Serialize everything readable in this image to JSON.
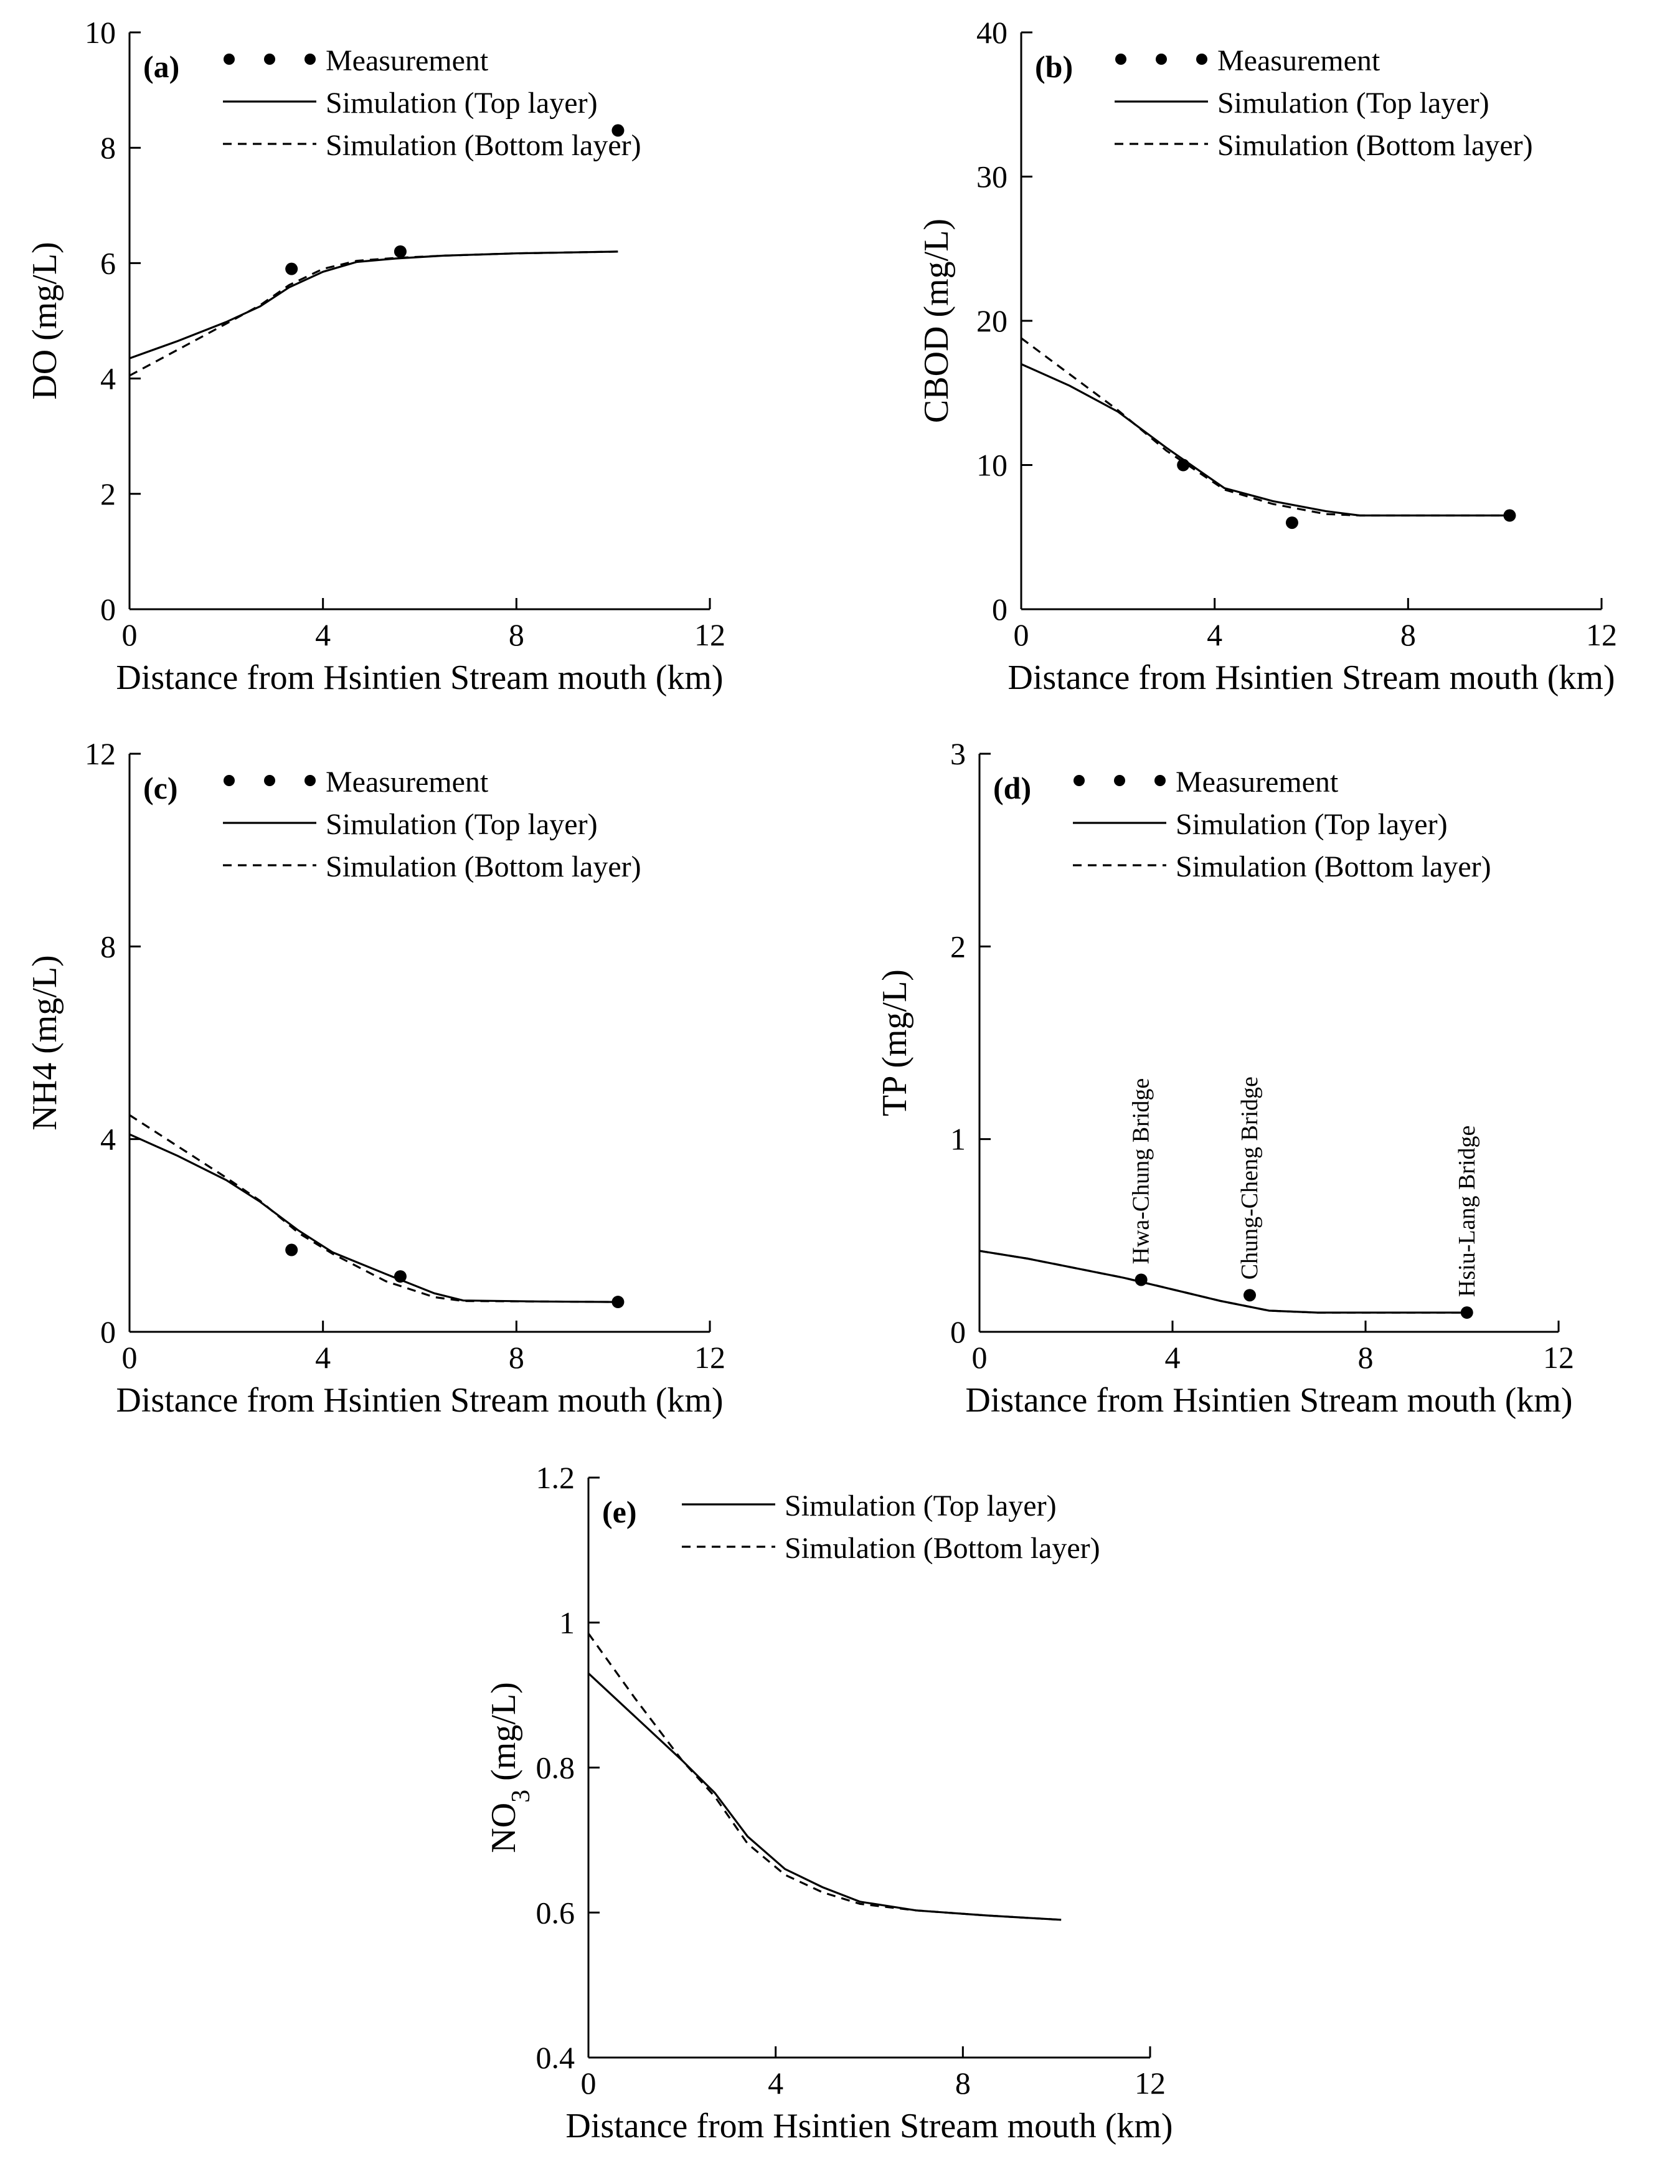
{
  "chart_data": [
    {
      "type": "line",
      "panel_label": "(a)",
      "xlabel": "Distance from Hsintien Stream mouth (km)",
      "ylabel": "DO (mg/L)",
      "xlim": [
        0,
        12
      ],
      "ylim": [
        0,
        10
      ],
      "xticks": [
        0,
        4,
        8,
        12
      ],
      "yticks": [
        0,
        2,
        4,
        6,
        8,
        10
      ],
      "legend_position": "top-left",
      "legend": [
        "Measurement",
        "Simulation (Top layer)",
        "Simulation (Bottom layer)"
      ],
      "series": [
        {
          "name": "Measurement",
          "style": "points",
          "x": [
            3.35,
            5.6,
            10.1
          ],
          "y": [
            5.9,
            6.2,
            8.3
          ]
        },
        {
          "name": "Simulation (Top layer)",
          "style": "solid",
          "x": [
            0,
            1,
            2,
            2.7,
            3.3,
            4.0,
            4.7,
            5.5,
            6.5,
            8,
            10.1
          ],
          "y": [
            4.35,
            4.65,
            4.98,
            5.25,
            5.58,
            5.85,
            6.02,
            6.08,
            6.13,
            6.17,
            6.2
          ]
        },
        {
          "name": "Simulation (Bottom layer)",
          "style": "dashed",
          "x": [
            0,
            1,
            2,
            2.7,
            3.3,
            4.0,
            4.7,
            5.5,
            6.5,
            8,
            10.1
          ],
          "y": [
            4.05,
            4.5,
            4.95,
            5.27,
            5.62,
            5.9,
            6.04,
            6.09,
            6.13,
            6.17,
            6.2
          ]
        }
      ]
    },
    {
      "type": "line",
      "panel_label": "(b)",
      "xlabel": "Distance from Hsintien Stream mouth (km)",
      "ylabel": "CBOD (mg/L)",
      "xlim": [
        0,
        12
      ],
      "ylim": [
        0,
        40
      ],
      "xticks": [
        0,
        4,
        8,
        12
      ],
      "yticks": [
        0,
        10,
        20,
        30,
        40
      ],
      "legend_position": "top-left",
      "legend": [
        "Measurement",
        "Simulation (Top layer)",
        "Simulation (Bottom layer)"
      ],
      "series": [
        {
          "name": "Measurement",
          "style": "points",
          "x": [
            3.35,
            5.6,
            10.1
          ],
          "y": [
            10,
            6,
            6.5
          ]
        },
        {
          "name": "Simulation (Top layer)",
          "style": "solid",
          "x": [
            0,
            1,
            2,
            3,
            4.2,
            5.2,
            6.3,
            7.0,
            8.5,
            10.1
          ],
          "y": [
            17,
            15.5,
            13.7,
            11.2,
            8.4,
            7.5,
            6.8,
            6.5,
            6.5,
            6.5
          ]
        },
        {
          "name": "Simulation (Bottom layer)",
          "style": "dashed",
          "x": [
            0,
            1,
            2,
            3,
            4.2,
            5.2,
            6.3,
            7.0,
            8.5,
            10.1
          ],
          "y": [
            18.8,
            16.3,
            13.8,
            11.0,
            8.3,
            7.3,
            6.6,
            6.5,
            6.5,
            6.5
          ]
        }
      ]
    },
    {
      "type": "line",
      "panel_label": "(c)",
      "xlabel": "Distance from Hsintien Stream mouth (km)",
      "ylabel": "NH4 (mg/L)",
      "xlim": [
        0,
        12
      ],
      "ylim": [
        0,
        12
      ],
      "xticks": [
        0,
        4,
        8,
        12
      ],
      "yticks": [
        0,
        4,
        8,
        12
      ],
      "legend_position": "top-left",
      "legend": [
        "Measurement",
        "Simulation (Top layer)",
        "Simulation (Bottom layer)"
      ],
      "series": [
        {
          "name": "Measurement",
          "style": "points",
          "x": [
            3.35,
            5.6,
            10.1
          ],
          "y": [
            1.7,
            1.15,
            0.62
          ]
        },
        {
          "name": "Simulation (Top layer)",
          "style": "solid",
          "x": [
            0,
            1,
            2,
            2.7,
            3.5,
            4.2,
            5.3,
            6.3,
            6.9,
            8.5,
            10.1
          ],
          "y": [
            4.1,
            3.65,
            3.15,
            2.7,
            2.1,
            1.65,
            1.2,
            0.8,
            0.65,
            0.63,
            0.62
          ]
        },
        {
          "name": "Simulation (Bottom layer)",
          "style": "dashed",
          "x": [
            0,
            1,
            2,
            2.7,
            3.5,
            4.2,
            5.3,
            6.3,
            6.9,
            8.5,
            10.1
          ],
          "y": [
            4.5,
            3.85,
            3.2,
            2.72,
            2.05,
            1.62,
            1.05,
            0.72,
            0.64,
            0.63,
            0.62
          ]
        }
      ]
    },
    {
      "type": "line",
      "panel_label": "(d)",
      "xlabel": "Distance from Hsintien Stream mouth (km)",
      "ylabel": "TP (mg/L)",
      "xlim": [
        0,
        12
      ],
      "ylim": [
        0,
        3
      ],
      "xticks": [
        0,
        4,
        8,
        12
      ],
      "yticks": [
        0,
        1,
        2,
        3
      ],
      "legend_position": "top-left",
      "legend": [
        "Measurement",
        "Simulation (Top layer)",
        "Simulation (Bottom layer)"
      ],
      "annotations": [
        {
          "text": "Hwa-Chung Bridge",
          "x": 3.35
        },
        {
          "text": "Chung-Cheng Bridge",
          "x": 5.6
        },
        {
          "text": "Hsiu-Lang Bridge",
          "x": 10.1
        }
      ],
      "series": [
        {
          "name": "Measurement",
          "style": "points",
          "x": [
            3.35,
            5.6,
            10.1
          ],
          "y": [
            0.27,
            0.19,
            0.1
          ]
        },
        {
          "name": "Simulation (Top layer)",
          "style": "solid",
          "x": [
            0,
            1,
            2,
            3,
            4,
            5,
            6,
            7,
            8.5,
            10.1
          ],
          "y": [
            0.42,
            0.38,
            0.33,
            0.28,
            0.22,
            0.16,
            0.11,
            0.1,
            0.1,
            0.1
          ]
        },
        {
          "name": "Simulation (Bottom layer)",
          "style": "dashed",
          "x": [
            0,
            1,
            2,
            3,
            4,
            5,
            6,
            7,
            8.5,
            10.1
          ],
          "y": [
            0.42,
            0.38,
            0.33,
            0.28,
            0.22,
            0.16,
            0.11,
            0.1,
            0.1,
            0.1
          ]
        }
      ]
    },
    {
      "type": "line",
      "panel_label": "(e)",
      "xlabel": "Distance from Hsintien Stream mouth (km)",
      "ylabel": "NO3 (mg/L)",
      "xlim": [
        0,
        12
      ],
      "ylim": [
        0.4,
        1.2
      ],
      "xticks": [
        0,
        4,
        8,
        12
      ],
      "yticks": [
        0.4,
        0.6,
        0.8,
        1,
        1.2
      ],
      "ytick_labels": [
        "0.4",
        "0.6",
        "0.8",
        "1",
        "1.2"
      ],
      "legend_position": "top-left",
      "legend": [
        "Simulation (Top layer)",
        "Simulation (Bottom layer)"
      ],
      "series": [
        {
          "name": "Simulation (Top layer)",
          "style": "solid",
          "x": [
            0,
            1,
            2,
            2.7,
            3.4,
            4.2,
            5,
            5.8,
            7,
            8.5,
            10.1
          ],
          "y": [
            0.93,
            0.87,
            0.81,
            0.765,
            0.705,
            0.66,
            0.635,
            0.615,
            0.603,
            0.596,
            0.59
          ]
        },
        {
          "name": "Simulation (Bottom layer)",
          "style": "dashed",
          "x": [
            0,
            1,
            2,
            2.7,
            3.4,
            4.2,
            5,
            5.8,
            7,
            8.5,
            10.1
          ],
          "y": [
            0.985,
            0.895,
            0.81,
            0.76,
            0.695,
            0.652,
            0.628,
            0.612,
            0.603,
            0.596,
            0.59
          ]
        }
      ]
    }
  ]
}
